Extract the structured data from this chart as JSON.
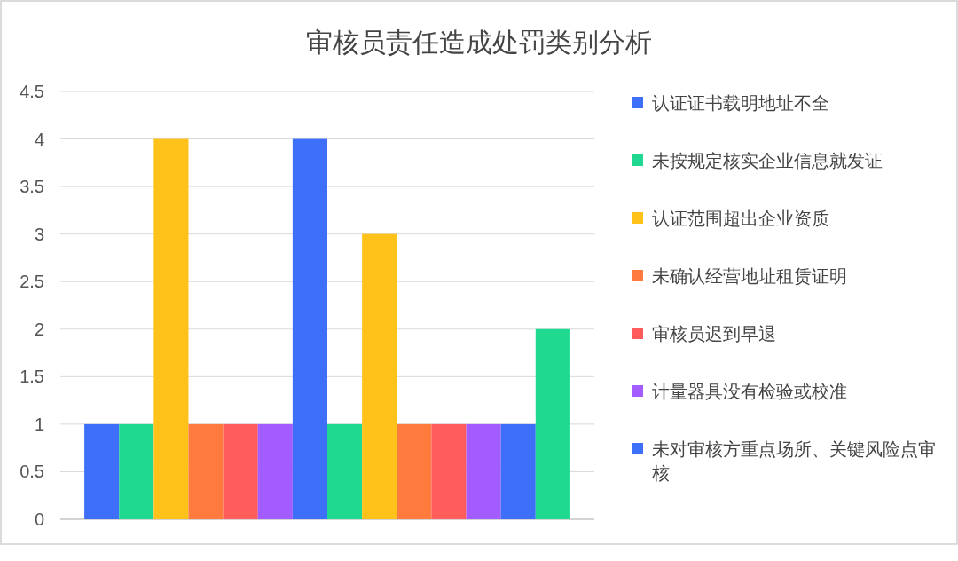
{
  "chart_data": {
    "type": "bar",
    "title": "审核员责任造成处罚类别分析",
    "categories": [
      null
    ],
    "series": [
      {
        "name": "认证证书载明地址不全",
        "color": "#3d6ff9",
        "values": [
          1
        ]
      },
      {
        "name": "未按规定核实企业信息就发证",
        "color": "#1ed98f",
        "values": [
          1
        ]
      },
      {
        "name": "认证范围超出企业资质",
        "color": "#ffc21a",
        "values": [
          4
        ]
      },
      {
        "name": "未确认经营地址租赁证明",
        "color": "#ff7a3d",
        "values": [
          1
        ]
      },
      {
        "name": "审核员迟到早退",
        "color": "#ff5c5c",
        "values": [
          1
        ]
      },
      {
        "name": "计量器具没有检验或校准",
        "color": "#a35cff",
        "values": [
          1
        ]
      },
      {
        "name": "未对审核方重点场所、关键风险点审核",
        "color": "#3d6ff9",
        "values": [
          4
        ]
      },
      {
        "color": "#1ed98f",
        "values": [
          1
        ]
      },
      {
        "color": "#ffc21a",
        "values": [
          3
        ]
      },
      {
        "color": "#ff7a3d",
        "values": [
          1
        ]
      },
      {
        "color": "#ff5c5c",
        "values": [
          1
        ]
      },
      {
        "color": "#a35cff",
        "values": [
          1
        ]
      },
      {
        "color": "#3d6ff9",
        "values": [
          1
        ]
      },
      {
        "color": "#1ed98f",
        "values": [
          2
        ]
      }
    ],
    "ylim": [
      0,
      4.5
    ],
    "yticks": [
      0,
      0.5,
      1,
      1.5,
      2,
      2.5,
      3,
      3.5,
      4,
      4.5
    ],
    "grid": "y",
    "legend": "right"
  }
}
